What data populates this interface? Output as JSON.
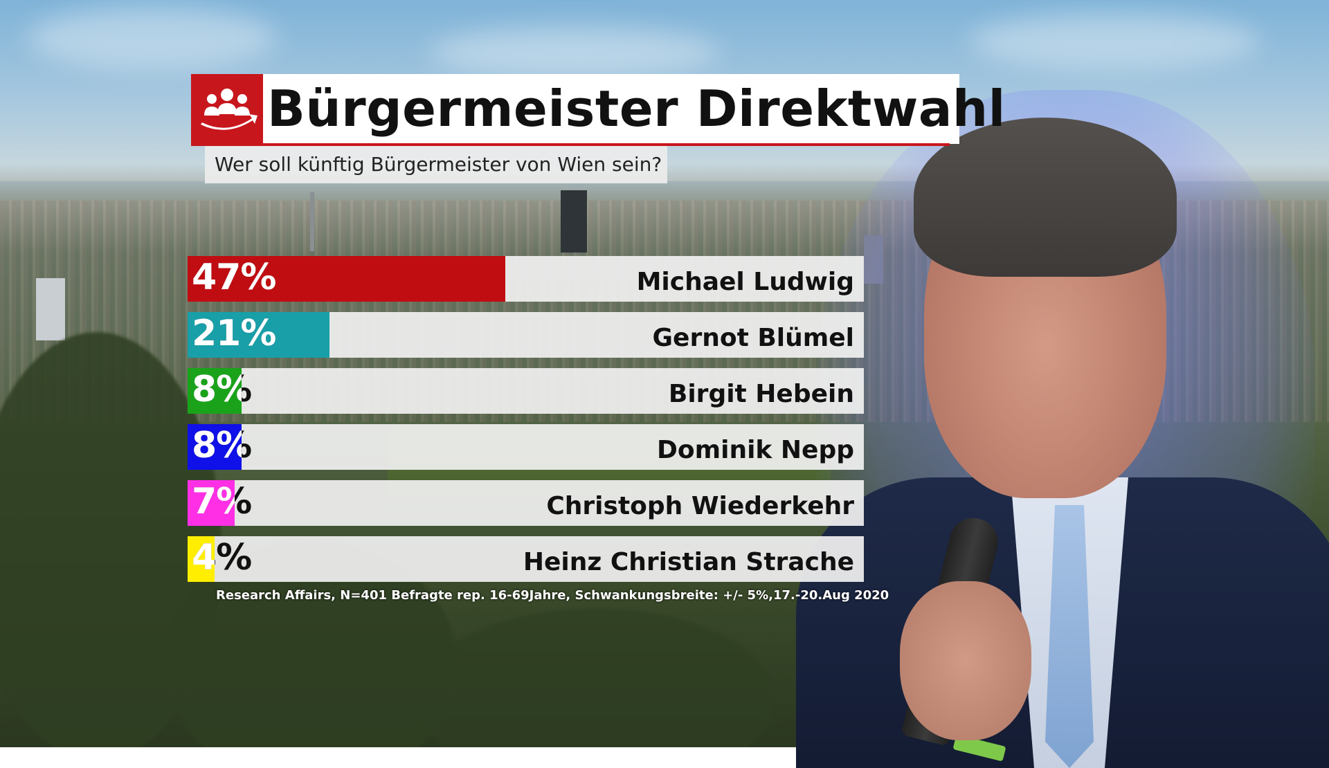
{
  "title": "Bürgermeister Direktwahl",
  "subtitle": "Wer soll künftig Bürgermeister von Wien sein?",
  "logo_icon": "people-group-icon",
  "footnote": "Research Affairs, N=401 Befragte rep. 16-69Jahre, Schwankungsbreite: +/- 5%,17.-20.Aug 2020",
  "colors": {
    "accent": "#c8161d"
  },
  "chart_data": {
    "type": "bar",
    "title": "Bürgermeister Direktwahl",
    "subtitle": "Wer soll künftig Bürgermeister von Wien sein?",
    "orientation": "horizontal",
    "xlim": [
      0,
      100
    ],
    "categories": [
      "Michael Ludwig",
      "Gernot Blümel",
      "Birgit Hebein",
      "Dominik Nepp",
      "Christoph Wiederkehr",
      "Heinz Christian Strache"
    ],
    "values": [
      47,
      21,
      8,
      8,
      7,
      4
    ],
    "labels": [
      "47%",
      "21%",
      "8%",
      "8%",
      "7%",
      "4%"
    ],
    "colors": [
      "#c00d12",
      "#199fa8",
      "#1aa31a",
      "#1010e8",
      "#ff2fe6",
      "#ffee00"
    ],
    "grid": false,
    "legend": "none"
  }
}
